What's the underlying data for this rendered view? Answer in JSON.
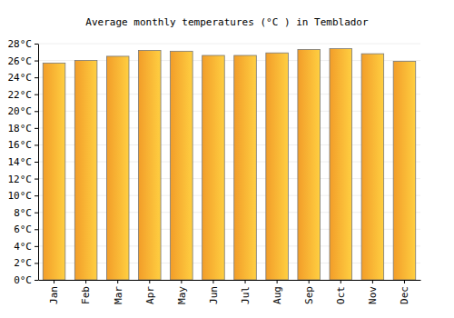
{
  "chart_data": {
    "type": "bar",
    "title": "Average monthly temperatures (°C ) in Temblador",
    "categories": [
      "Jan",
      "Feb",
      "Mar",
      "Apr",
      "May",
      "Jun",
      "Jul",
      "Aug",
      "Sep",
      "Oct",
      "Nov",
      "Dec"
    ],
    "values": [
      25.7,
      26.0,
      26.5,
      27.2,
      27.1,
      26.6,
      26.6,
      26.9,
      27.3,
      27.4,
      26.8,
      25.9
    ],
    "color": "#ffa62b",
    "ylim": [
      0,
      28
    ],
    "yticks": [
      {
        "value": 0,
        "label": "0°C"
      },
      {
        "value": 2,
        "label": "2°C"
      },
      {
        "value": 4,
        "label": "4°C"
      },
      {
        "value": 6,
        "label": "6°C"
      },
      {
        "value": 8,
        "label": "8°C"
      },
      {
        "value": 10,
        "label": "10°C"
      },
      {
        "value": 12,
        "label": "12°C"
      },
      {
        "value": 14,
        "label": "14°C"
      },
      {
        "value": 16,
        "label": "16°C"
      },
      {
        "value": 18,
        "label": "18°C"
      },
      {
        "value": 20,
        "label": "20°C"
      },
      {
        "value": 22,
        "label": "22°C"
      },
      {
        "value": 24,
        "label": "24°C"
      },
      {
        "value": 26,
        "label": "26°C"
      },
      {
        "value": 28,
        "label": "28°C"
      }
    ],
    "grid": true
  }
}
